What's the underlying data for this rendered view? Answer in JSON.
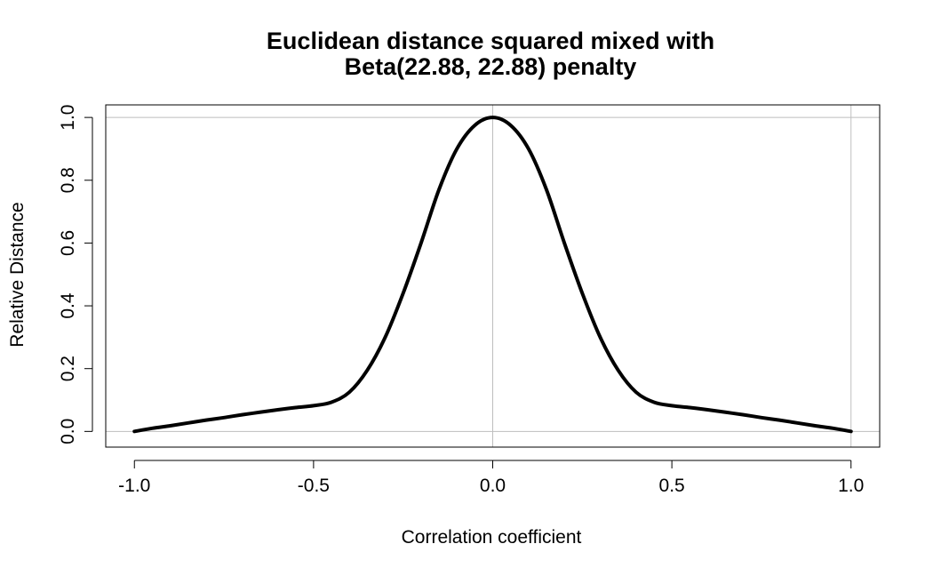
{
  "chart_data": {
    "type": "line",
    "title_line1": "Euclidean distance squared mixed with",
    "title_line2": "Beta(22.88, 22.88) penalty",
    "xlabel": "Correlation coefficient",
    "ylabel": "Relative Distance",
    "xlim": [
      -1.08,
      1.08
    ],
    "ylim": [
      -0.05,
      1.04
    ],
    "grid": "reference lines at x=0, x=1, y=0, y=1",
    "x_ticks": [
      {
        "value": -1.0,
        "label": "-1.0"
      },
      {
        "value": -0.5,
        "label": "-0.5"
      },
      {
        "value": 0.0,
        "label": "0.0"
      },
      {
        "value": 0.5,
        "label": "0.5"
      },
      {
        "value": 1.0,
        "label": "1.0"
      }
    ],
    "y_ticks": [
      {
        "value": 0.0,
        "label": "0.0"
      },
      {
        "value": 0.2,
        "label": "0.2"
      },
      {
        "value": 0.4,
        "label": "0.4"
      },
      {
        "value": 0.6,
        "label": "0.6"
      },
      {
        "value": 0.8,
        "label": "0.8"
      },
      {
        "value": 1.0,
        "label": "1.0"
      }
    ],
    "colors": {
      "line": "#000000",
      "grid": "#bebebe",
      "frame": "#000000"
    },
    "series": [
      {
        "x": [
          -1.0,
          -0.95,
          -0.9,
          -0.85,
          -0.8,
          -0.75,
          -0.7,
          -0.65,
          -0.6,
          -0.55,
          -0.5,
          -0.45,
          -0.4,
          -0.35,
          -0.3,
          -0.25,
          -0.2,
          -0.15,
          -0.1,
          -0.05,
          0.0,
          0.05,
          0.1,
          0.15,
          0.2,
          0.25,
          0.3,
          0.35,
          0.4,
          0.45,
          0.5,
          0.55,
          0.6,
          0.65,
          0.7,
          0.75,
          0.8,
          0.85,
          0.9,
          0.95,
          1.0
        ],
        "y": [
          0.0,
          0.01,
          0.018,
          0.027,
          0.036,
          0.044,
          0.053,
          0.061,
          0.069,
          0.076,
          0.082,
          0.093,
          0.125,
          0.195,
          0.3,
          0.44,
          0.6,
          0.77,
          0.9,
          0.975,
          1.0,
          0.975,
          0.9,
          0.77,
          0.6,
          0.44,
          0.3,
          0.195,
          0.125,
          0.093,
          0.082,
          0.076,
          0.069,
          0.061,
          0.053,
          0.044,
          0.036,
          0.027,
          0.018,
          0.01,
          0.0
        ]
      }
    ]
  }
}
